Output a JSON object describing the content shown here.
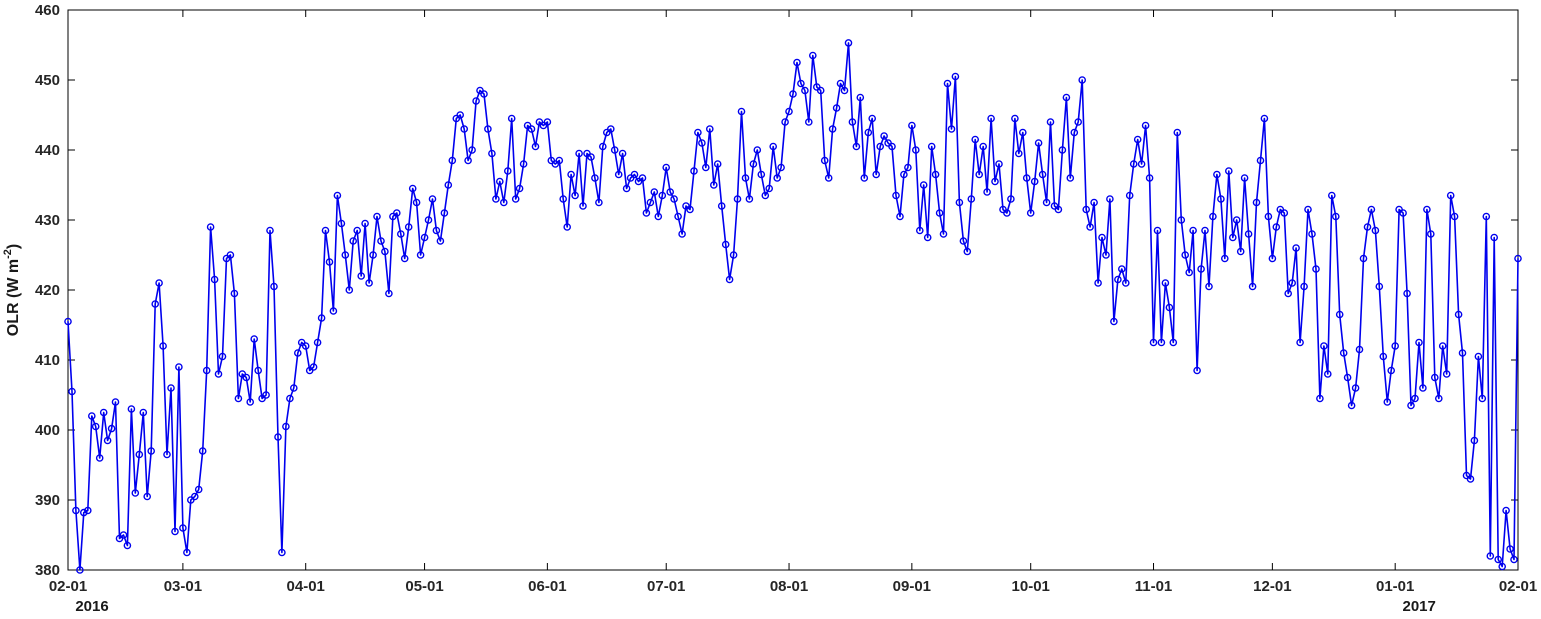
{
  "chart_data": {
    "type": "line",
    "title": "",
    "xlabel": "",
    "ylabel": "OLR (W m⁻²)",
    "ylabel_parts": {
      "pre": "OLR (W m",
      "sup": "-2",
      "post": ")"
    },
    "ylim": [
      380,
      460
    ],
    "yticks": [
      380,
      390,
      400,
      410,
      420,
      430,
      440,
      450,
      460
    ],
    "x_unit": "day",
    "xlim_days": [
      0,
      366
    ],
    "x_tick_labels": [
      "02-01",
      "03-01",
      "04-01",
      "05-01",
      "06-01",
      "07-01",
      "08-01",
      "09-01",
      "10-01",
      "11-01",
      "12-01",
      "01-01",
      "02-01"
    ],
    "x_tick_day_offsets": [
      0,
      29,
      60,
      90,
      121,
      151,
      182,
      213,
      243,
      274,
      304,
      335,
      366
    ],
    "year_labels": [
      {
        "text": "2016",
        "tick_index": 0
      },
      {
        "text": "2017",
        "tick_index": 11
      }
    ],
    "grid": false,
    "legend": "none",
    "series": [
      {
        "name": "OLR",
        "color": "#0000EE",
        "marker": "circle",
        "values": [
          415.5,
          405.5,
          388.5,
          380.0,
          388.2,
          388.5,
          402,
          400.5,
          396,
          402.5,
          398.5,
          400.2,
          404,
          384.5,
          385,
          383.5,
          403,
          391,
          396.5,
          402.5,
          390.5,
          397,
          418,
          421,
          412,
          396.5,
          406,
          385.5,
          409,
          386,
          382.5,
          390,
          390.5,
          391.5,
          397,
          408.5,
          429,
          421.5,
          408,
          410.5,
          424.5,
          425,
          419.5,
          404.5,
          408,
          407.5,
          404,
          413,
          408.5,
          404.5,
          405,
          428.5,
          420.5,
          399,
          382.5,
          400.5,
          404.5,
          406,
          411,
          412.5,
          412,
          408.5,
          409,
          412.5,
          416,
          428.5,
          424,
          417,
          433.5,
          429.5,
          425,
          420,
          427,
          428.5,
          422,
          429.5,
          421,
          425,
          430.5,
          427,
          425.5,
          419.5,
          430.5,
          431,
          428,
          424.5,
          429,
          434.5,
          432.5,
          425,
          427.5,
          430,
          433,
          428.5,
          427,
          431,
          435,
          438.5,
          444.5,
          445,
          443,
          438.5,
          440,
          447,
          448.5,
          448,
          443,
          439.5,
          433,
          435.5,
          432.5,
          437,
          444.5,
          433,
          434.5,
          438,
          443.5,
          443,
          440.5,
          444,
          443.5,
          444,
          438.5,
          438,
          438.5,
          433,
          429,
          436.5,
          433.5,
          439.5,
          432,
          439.5,
          439,
          436,
          432.5,
          440.5,
          442.5,
          443,
          440,
          436.5,
          439.5,
          434.5,
          436,
          436.5,
          435.5,
          436,
          431,
          432.5,
          434,
          430.5,
          433.5,
          437.5,
          434,
          433,
          430.5,
          428,
          432,
          431.5,
          437,
          442.5,
          441,
          437.5,
          443,
          435,
          438,
          432,
          426.5,
          421.5,
          425,
          433,
          445.5,
          436,
          433,
          438,
          440,
          436.5,
          433.5,
          434.5,
          440.5,
          436,
          437.5,
          444,
          445.5,
          448,
          452.5,
          449.5,
          448.5,
          444,
          453.5,
          449,
          448.5,
          438.5,
          436,
          443,
          446,
          449.5,
          448.5,
          455.3,
          444,
          440.5,
          447.5,
          436,
          442.5,
          444.5,
          436.5,
          440.5,
          442,
          441,
          440.5,
          433.5,
          430.5,
          436.5,
          437.5,
          443.5,
          440,
          428.5,
          435,
          427.5,
          440.5,
          436.5,
          431,
          428,
          449.5,
          443,
          450.5,
          432.5,
          427,
          425.5,
          433,
          441.5,
          436.5,
          440.5,
          434,
          444.5,
          435.5,
          438,
          431.5,
          431,
          433,
          444.5,
          439.5,
          442.5,
          436,
          431,
          435.5,
          441,
          436.5,
          432.5,
          444,
          432,
          431.5,
          440,
          447.5,
          436,
          442.5,
          444,
          450,
          431.5,
          429,
          432.5,
          421,
          427.5,
          425,
          433,
          415.5,
          421.5,
          423,
          421,
          433.5,
          438,
          441.5,
          438,
          443.5,
          436,
          412.5,
          428.5,
          412.5,
          421,
          417.5,
          412.5,
          442.5,
          430,
          425,
          422.5,
          428.5,
          408.5,
          423,
          428.5,
          420.5,
          430.5,
          436.5,
          433,
          424.5,
          437,
          427.5,
          430,
          425.5,
          436,
          428,
          420.5,
          432.5,
          438.5,
          444.5,
          430.5,
          424.5,
          429,
          431.5,
          431,
          419.5,
          421,
          426,
          412.5,
          420.5,
          431.5,
          428,
          423,
          404.5,
          412,
          408,
          433.5,
          430.5,
          416.5,
          411,
          407.5,
          403.5,
          406,
          411.5,
          424.5,
          429,
          431.5,
          428.5,
          420.5,
          410.5,
          404,
          408.5,
          412,
          431.5,
          431,
          419.5,
          403.5,
          404.5,
          412.5,
          406,
          431.5,
          428,
          407.5,
          404.5,
          412,
          408,
          433.5,
          430.5,
          416.5,
          411,
          393.5,
          393,
          398.5,
          410.5,
          404.5,
          430.5,
          382,
          427.5,
          381.5,
          380.5,
          388.5,
          383,
          381.5,
          424.5
        ]
      }
    ]
  },
  "styles": {
    "line_color": "#0000EE",
    "axis_color": "#000000",
    "label_color": "#262626",
    "background": "#FFFFFF"
  }
}
